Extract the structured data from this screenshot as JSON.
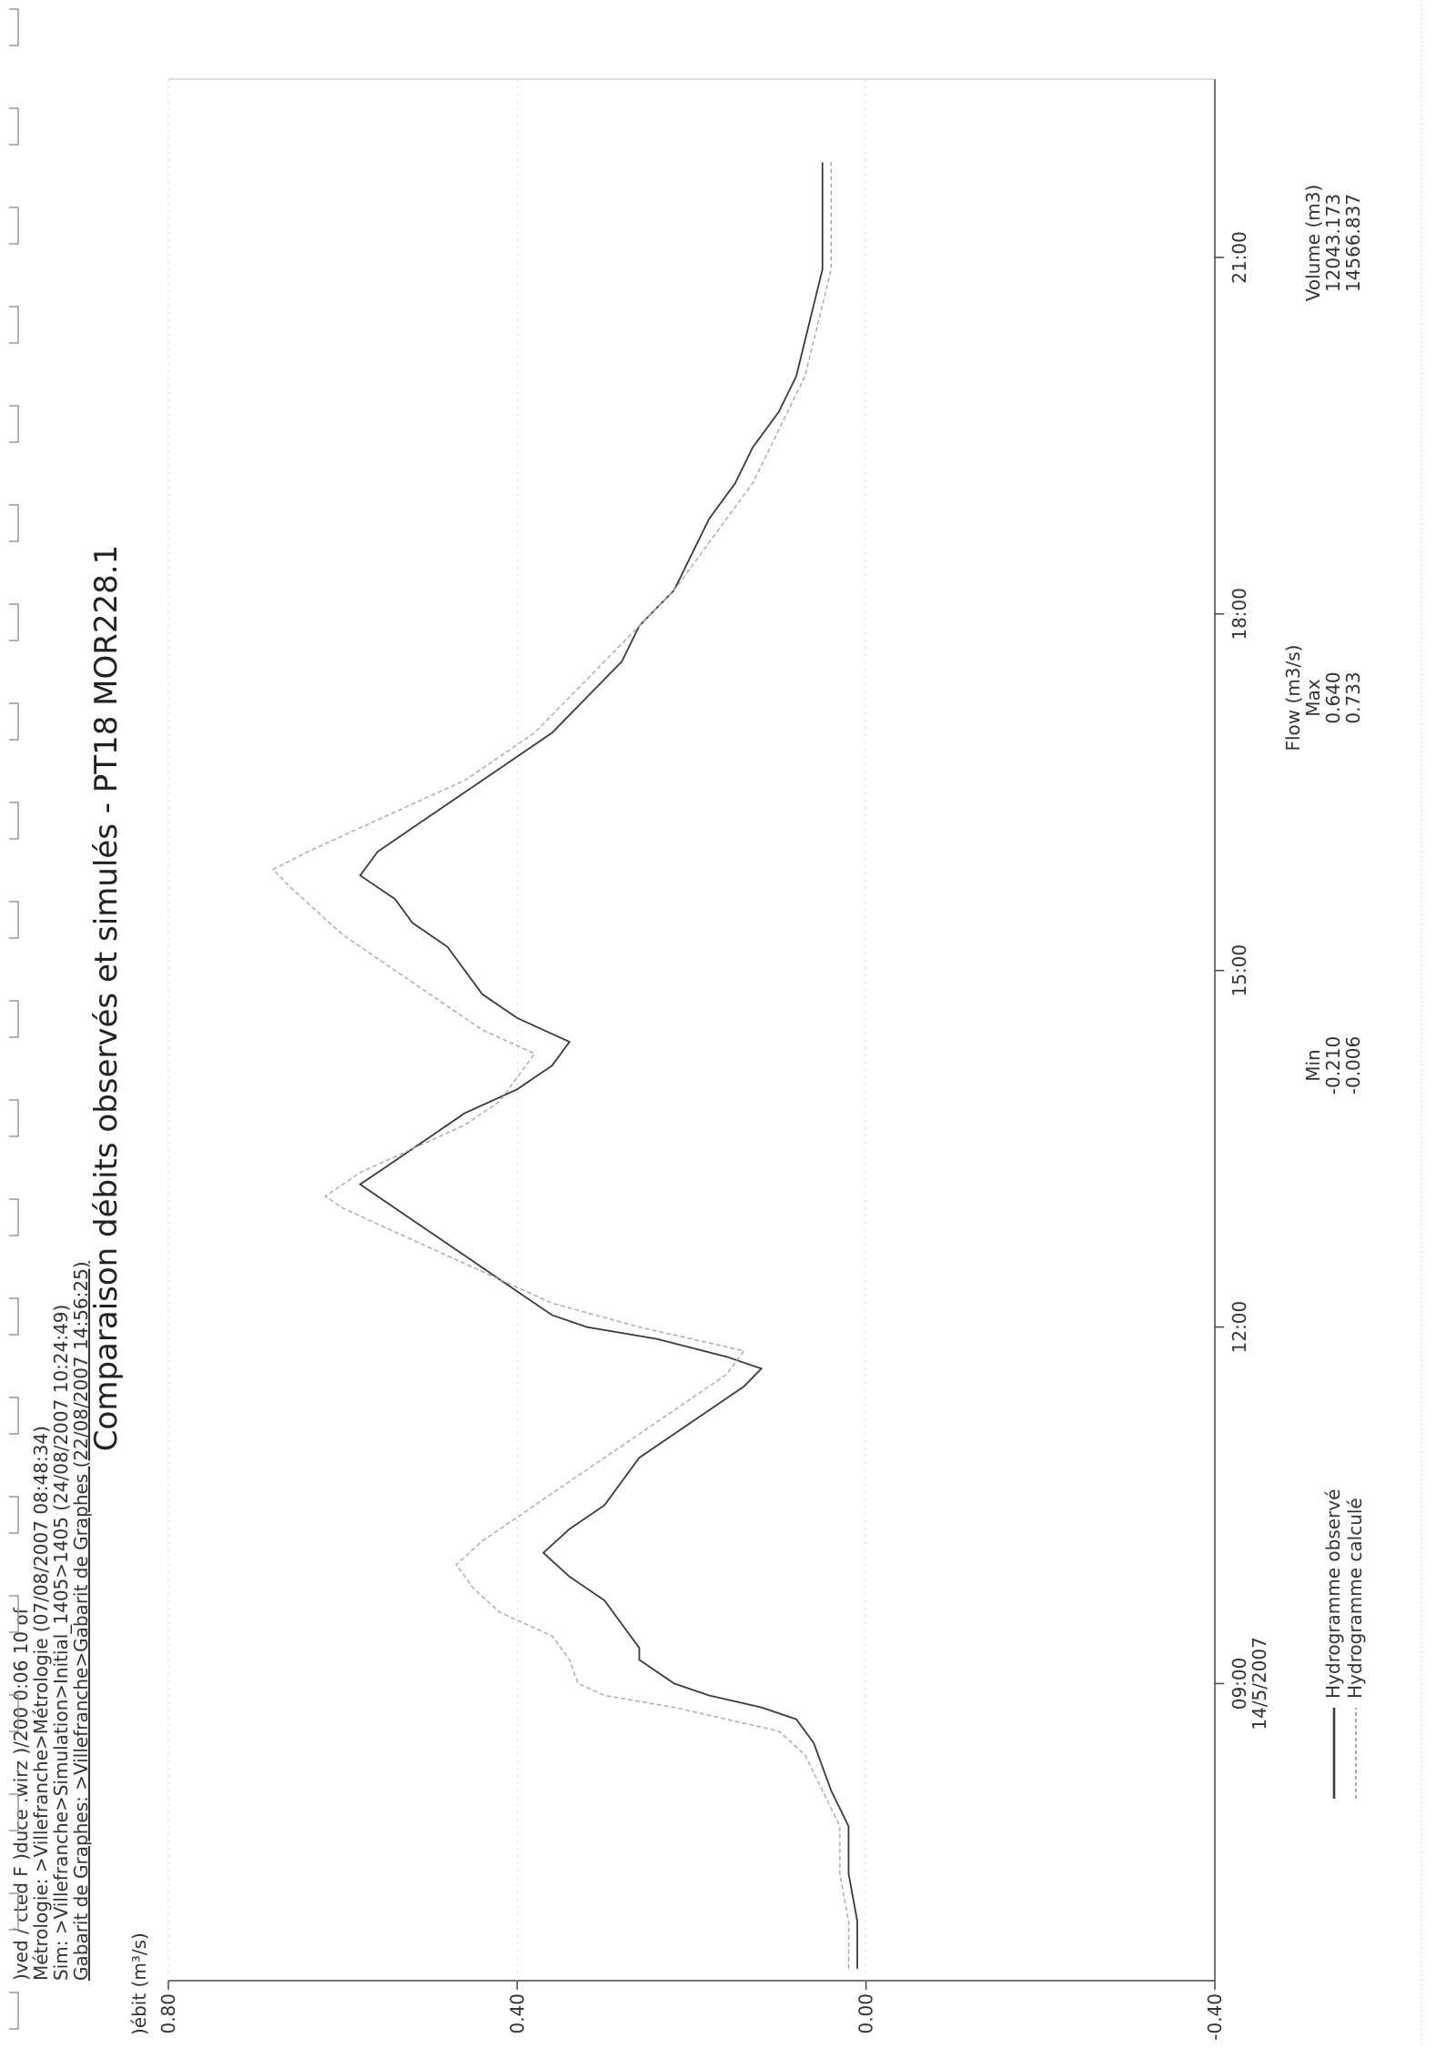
{
  "header": {
    "line1": ")ved /         cted F        )duce        .wirz        )/200        0:06        10 of",
    "line2": "Métrologie: >Villefranche>Métrologie (07/08/2007 08:48:34)",
    "line3": "Sim: >Villefranche>Simulation>Initial_1405>1405 (24/08/2007 10:24:49)",
    "line4": "Gabarit de Graphes: >Villefranche>Gabarit de Graphes (22/08/2007 14:56:25)"
  },
  "chart_data": {
    "type": "line",
    "title": "Comparaison débits observés et simulés - PT18 MOR228.1",
    "ylabel": ")ébit (m³/s)",
    "xlabel": "",
    "ylim": [
      -0.4,
      0.8
    ],
    "yticks": [
      "0.80",
      "0.40",
      "0.00",
      "-0.40"
    ],
    "ytick_values": [
      0.8,
      0.4,
      0.0,
      -0.4
    ],
    "xlim": [
      6.5,
      22.5
    ],
    "xticks": [
      "09:00",
      "12:00",
      "15:00",
      "18:00",
      "21:00"
    ],
    "xtick_values": [
      9,
      12,
      15,
      18,
      21
    ],
    "date_label": "14/5/2007",
    "grid": false,
    "legend_position": "bottom-left",
    "series": [
      {
        "name": "Hydrogramme observé",
        "color": "#3a3a3a",
        "x": [
          6.6,
          7.0,
          7.4,
          7.8,
          8.1,
          8.3,
          8.5,
          8.7,
          8.8,
          8.9,
          9.0,
          9.1,
          9.2,
          9.3,
          9.5,
          9.7,
          9.9,
          10.1,
          10.3,
          10.5,
          10.7,
          10.9,
          11.1,
          11.3,
          11.5,
          11.65,
          11.75,
          11.9,
          12.0,
          12.1,
          12.3,
          12.5,
          12.7,
          12.9,
          13.1,
          13.2,
          13.4,
          13.6,
          13.8,
          14.0,
          14.2,
          14.4,
          14.6,
          14.8,
          15.0,
          15.2,
          15.4,
          15.6,
          15.8,
          16.0,
          16.2,
          16.4,
          16.6,
          16.8,
          17.0,
          17.3,
          17.6,
          17.9,
          18.2,
          18.5,
          18.8,
          19.1,
          19.4,
          19.7,
          20.0,
          20.3,
          20.6,
          20.9,
          21.2,
          21.5,
          21.8
        ],
        "y": [
          0.01,
          0.01,
          0.02,
          0.02,
          0.04,
          0.05,
          0.06,
          0.08,
          0.12,
          0.18,
          0.22,
          0.24,
          0.26,
          0.26,
          0.28,
          0.3,
          0.34,
          0.37,
          0.34,
          0.3,
          0.28,
          0.26,
          0.22,
          0.18,
          0.14,
          0.12,
          0.16,
          0.24,
          0.32,
          0.36,
          0.4,
          0.44,
          0.48,
          0.52,
          0.56,
          0.58,
          0.54,
          0.5,
          0.46,
          0.4,
          0.36,
          0.34,
          0.4,
          0.44,
          0.46,
          0.48,
          0.52,
          0.54,
          0.58,
          0.56,
          0.52,
          0.48,
          0.44,
          0.4,
          0.36,
          0.32,
          0.28,
          0.26,
          0.22,
          0.2,
          0.18,
          0.15,
          0.13,
          0.1,
          0.08,
          0.07,
          0.06,
          0.05,
          0.05,
          0.05,
          0.05
        ]
      },
      {
        "name": "Hydrogramme calculé",
        "color": "#a8a8a8",
        "x": [
          6.6,
          7.0,
          7.4,
          7.8,
          8.1,
          8.4,
          8.6,
          8.8,
          8.9,
          9.0,
          9.2,
          9.4,
          9.6,
          9.8,
          10.0,
          10.2,
          10.4,
          10.6,
          10.8,
          11.0,
          11.2,
          11.4,
          11.6,
          11.8,
          12.0,
          12.2,
          12.4,
          12.6,
          12.8,
          13.0,
          13.1,
          13.3,
          13.5,
          13.7,
          13.9,
          14.1,
          14.3,
          14.5,
          14.7,
          14.9,
          15.1,
          15.3,
          15.5,
          15.7,
          15.85,
          16.0,
          16.2,
          16.4,
          16.6,
          16.8,
          17.0,
          17.3,
          17.6,
          17.9,
          18.2,
          18.5,
          18.8,
          19.1,
          19.4,
          19.7,
          20.0,
          20.3,
          20.6,
          20.9,
          21.2,
          21.5,
          21.8
        ],
        "y": [
          0.02,
          0.02,
          0.03,
          0.03,
          0.05,
          0.07,
          0.1,
          0.22,
          0.3,
          0.33,
          0.34,
          0.36,
          0.42,
          0.45,
          0.47,
          0.44,
          0.4,
          0.36,
          0.32,
          0.28,
          0.24,
          0.2,
          0.16,
          0.14,
          0.26,
          0.36,
          0.42,
          0.48,
          0.54,
          0.6,
          0.62,
          0.58,
          0.52,
          0.46,
          0.42,
          0.4,
          0.38,
          0.44,
          0.48,
          0.52,
          0.56,
          0.6,
          0.63,
          0.66,
          0.68,
          0.64,
          0.58,
          0.52,
          0.46,
          0.42,
          0.38,
          0.34,
          0.3,
          0.26,
          0.22,
          0.19,
          0.16,
          0.13,
          0.11,
          0.09,
          0.07,
          0.06,
          0.05,
          0.04,
          0.04,
          0.04,
          0.04
        ]
      }
    ],
    "legend": {
      "entries": [
        "Hydrogramme observé",
        "Hydrogramme calculé"
      ]
    },
    "stats_table": {
      "col_flow_header": "Flow (m3/s)",
      "col_min": "Min",
      "col_max": "Max",
      "col_volume": "Volume (m3)",
      "rows": [
        {
          "min": "-0.210",
          "max": "0.640",
          "volume": "12043.173"
        },
        {
          "min": "-0.006",
          "max": "0.733",
          "volume": "14566.837"
        }
      ]
    }
  }
}
